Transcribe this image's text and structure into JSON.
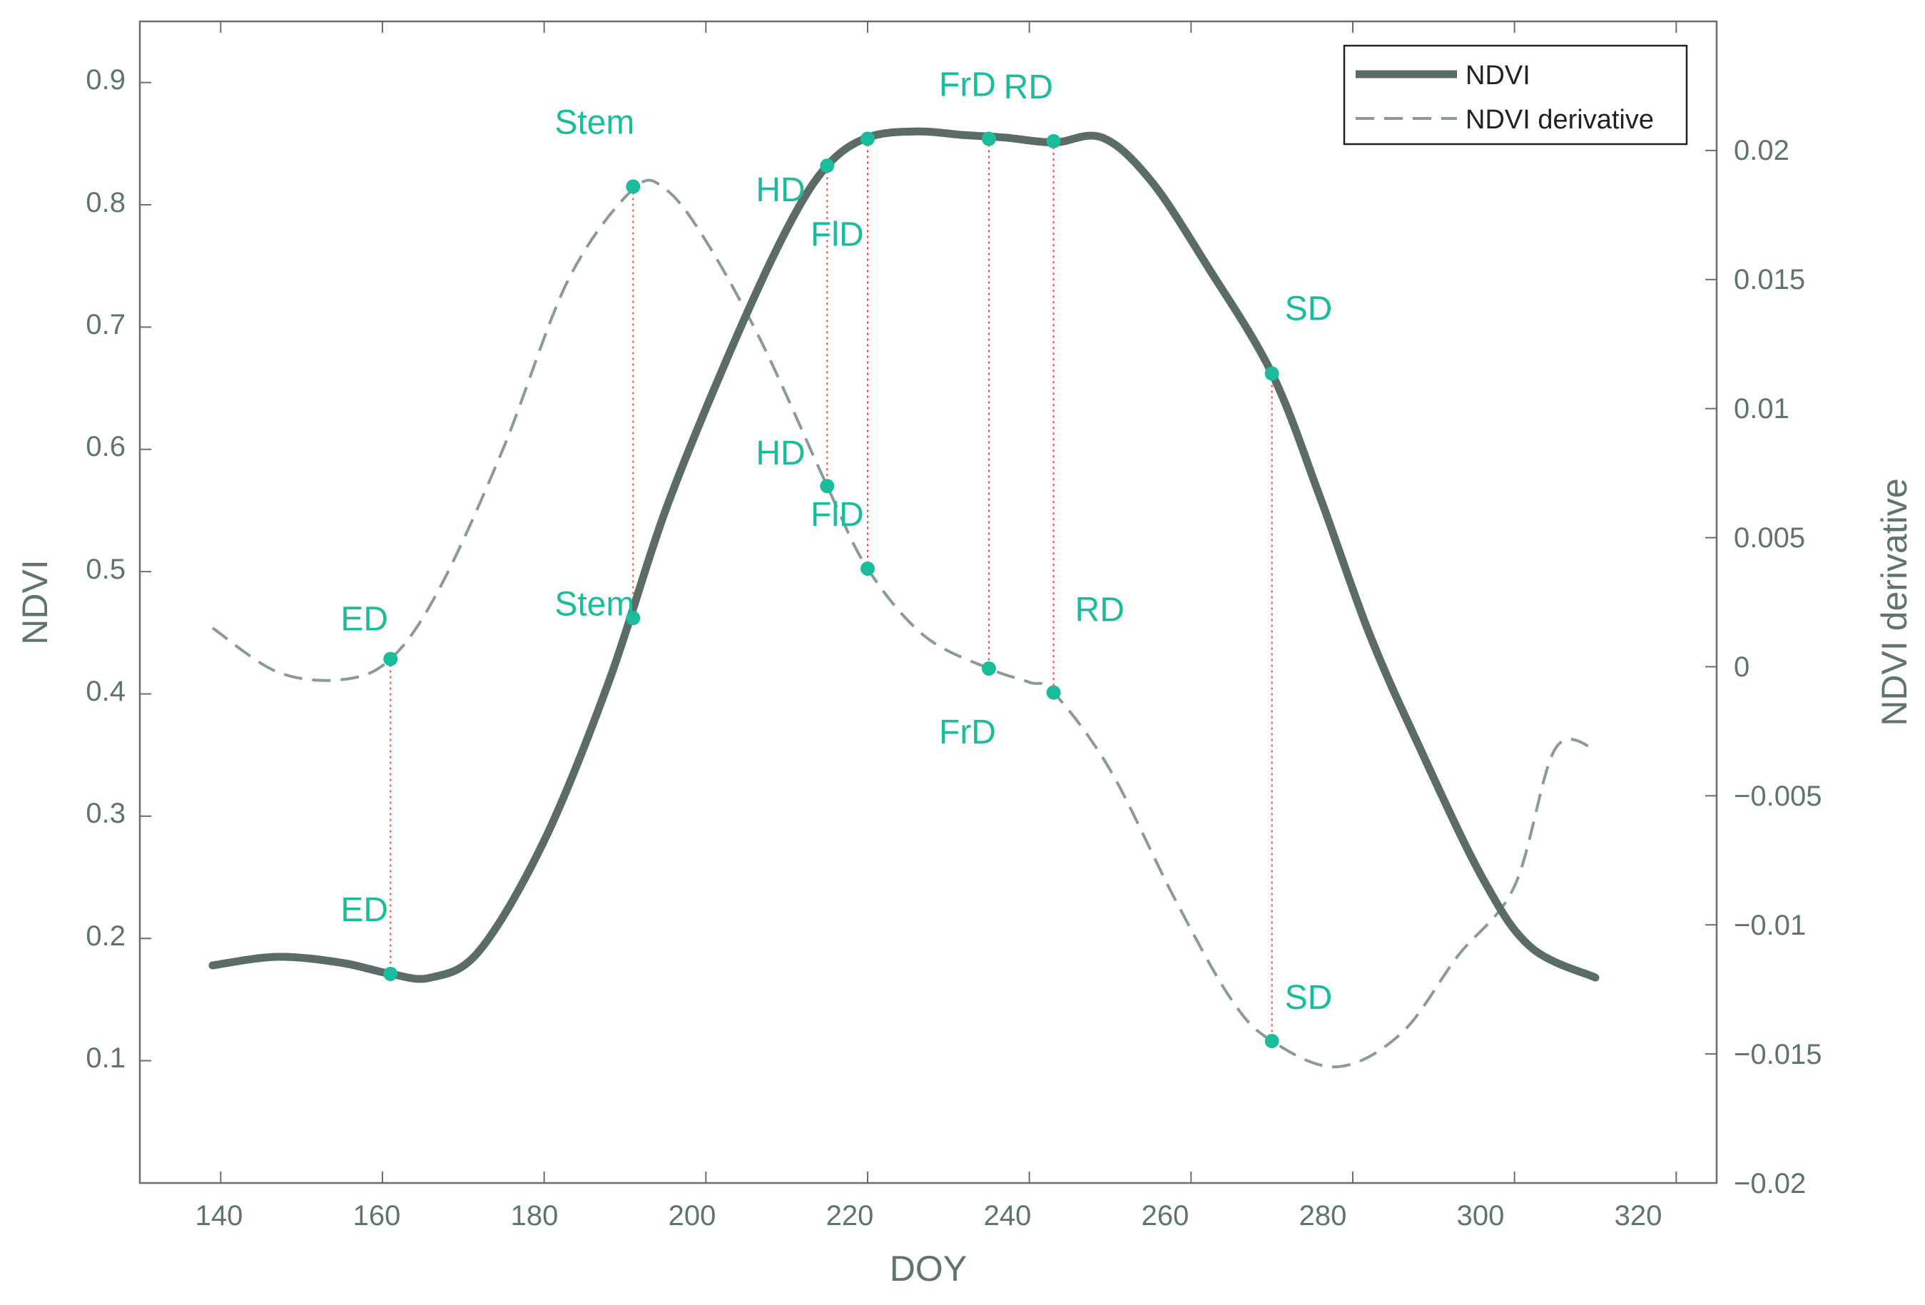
{
  "chart_data": {
    "type": "line",
    "xlabel": "DOY",
    "ylabel": "NDVI",
    "y2label": "NDVI derivative",
    "xlim": [
      130,
      325
    ],
    "ylim": [
      0.0,
      0.95
    ],
    "y2lim": [
      -0.02,
      0.025
    ],
    "xticks": [
      "140",
      "160",
      "180",
      "200",
      "220",
      "240",
      "260",
      "280",
      "300",
      "320"
    ],
    "yticks": [
      "0.1",
      "0.2",
      "0.3",
      "0.4",
      "0.5",
      "0.6",
      "0.7",
      "0.8",
      "0.9"
    ],
    "y2ticks": [
      "−0.02",
      "−0.015",
      "−0.01",
      "−0.005",
      "0",
      "0.005",
      "0.01",
      "0.015",
      "0.02"
    ],
    "legend": {
      "position": "top-right",
      "entries": [
        "NDVI",
        "NDVI derivative"
      ]
    },
    "series": [
      {
        "name": "NDVI",
        "axis": "left",
        "style": "solid",
        "color": "#5a6b68",
        "x": [
          139,
          147,
          155,
          161,
          166,
          172,
          180,
          188,
          195,
          203,
          210,
          215,
          220,
          226,
          232,
          237,
          243,
          249,
          255,
          262,
          270,
          276,
          282,
          288,
          296,
          302,
          310
        ],
        "y": [
          0.178,
          0.185,
          0.18,
          0.171,
          0.168,
          0.19,
          0.28,
          0.41,
          0.55,
          0.68,
          0.78,
          0.832,
          0.855,
          0.86,
          0.857,
          0.855,
          0.851,
          0.855,
          0.82,
          0.75,
          0.662,
          0.56,
          0.45,
          0.36,
          0.25,
          0.193,
          0.168
        ]
      },
      {
        "name": "NDVI derivative",
        "axis": "right",
        "style": "dashed",
        "color": "#8a9a96",
        "x": [
          139,
          147,
          155,
          161,
          167,
          175,
          183,
          191,
          195,
          200,
          207,
          215,
          220,
          227,
          235,
          240,
          243,
          250,
          258,
          265,
          270,
          278,
          286,
          293,
          300,
          305,
          310
        ],
        "y": [
          0.0015,
          -0.0002,
          -0.0005,
          0.0003,
          0.003,
          0.0085,
          0.015,
          0.0185,
          0.0185,
          0.0165,
          0.0125,
          0.007,
          0.0038,
          0.0012,
          -7e-05,
          -0.0006,
          -0.001,
          -0.004,
          -0.009,
          -0.0129,
          -0.0145,
          -0.0155,
          -0.0142,
          -0.0112,
          -0.0085,
          -0.0032,
          -0.0032
        ]
      }
    ],
    "stages": [
      {
        "label": "ED",
        "doy": 161,
        "ndvi": 0.171,
        "deriv": 0.0003
      },
      {
        "label": "Stem",
        "doy": 191,
        "ndvi": 0.462,
        "deriv": 0.0186
      },
      {
        "label": "HD",
        "doy": 215,
        "ndvi": 0.832,
        "deriv": 0.007
      },
      {
        "label": "FlD",
        "doy": 220,
        "ndvi": 0.854,
        "deriv": 0.0038
      },
      {
        "label": "FrD",
        "doy": 235,
        "ndvi": 0.854,
        "deriv": -7e-05
      },
      {
        "label": "RD",
        "doy": 243,
        "ndvi": 0.852,
        "deriv": -0.001
      },
      {
        "label": "SD",
        "doy": 270,
        "ndvi": 0.662,
        "deriv": -0.0145
      }
    ]
  }
}
